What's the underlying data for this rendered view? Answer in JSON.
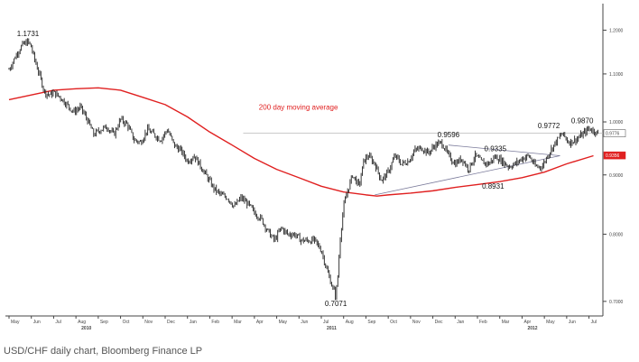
{
  "caption": "USD/CHF daily chart, Bloomberg Finance LP",
  "colors": {
    "price": "#222222",
    "moving_average": "#e02020",
    "trendline": "#7a7a9a",
    "reference_line": "#b8b8b8",
    "axis": "#444444",
    "tick_text": "#444444",
    "label_text": "#111111",
    "ma_label": "#e02020",
    "last_price_box": "#ffffff",
    "ma_box": "#e02020"
  },
  "chart_data": {
    "type": "line",
    "title": "",
    "xlabel": "",
    "ylabel": "",
    "y_scale": "log",
    "ylim": [
      0.68,
      1.265
    ],
    "grid": false,
    "y_ticks": [
      {
        "value": 0.7,
        "label": "0.7000"
      },
      {
        "value": 0.8,
        "label": "0.8000"
      },
      {
        "value": 0.9,
        "label": "0.9000"
      },
      {
        "value": 1.0,
        "label": "1.0000"
      },
      {
        "value": 1.1,
        "label": "1.1000"
      },
      {
        "value": 1.2,
        "label": "1.2000"
      }
    ],
    "x_ticks": [
      "May",
      "Jun",
      "Jul",
      "Aug",
      "Sep",
      "Oct",
      "Nov",
      "Dec",
      "Jan",
      "Feb",
      "Mar",
      "Apr",
      "May",
      "Jun",
      "Jul",
      "Aug",
      "Sep",
      "Oct",
      "Nov",
      "Dec",
      "Jan",
      "Feb",
      "Mar",
      "Apr",
      "May",
      "Jun",
      "Jul"
    ],
    "year_labels": [
      {
        "label": "2010",
        "month_index": 3
      },
      {
        "label": "2011",
        "month_index": 14
      },
      {
        "label": "2012",
        "month_index": 23
      }
    ],
    "series": [
      {
        "kind": "price",
        "x": [
          0,
          0.2,
          0.4,
          0.6,
          0.85,
          1.0,
          1.1,
          1.35,
          1.6,
          1.85,
          2.0,
          2.3,
          2.6,
          2.9,
          3.2,
          3.5,
          3.8,
          4.1,
          4.4,
          4.7,
          5.0,
          5.3,
          5.6,
          5.9,
          6.2,
          6.5,
          6.8,
          7.1,
          7.4,
          7.7,
          8.0,
          8.3,
          8.6,
          8.9,
          9.2,
          9.5,
          9.8,
          10.1,
          10.4,
          10.7,
          11.0,
          11.3,
          11.6,
          11.9,
          12.2,
          12.5,
          12.8,
          13.1,
          13.4,
          13.7,
          14.0,
          14.25,
          14.5,
          14.65,
          14.75,
          14.85,
          15.0,
          15.2,
          15.4,
          15.55,
          15.7,
          15.9,
          16.1,
          16.4,
          16.7,
          17.0,
          17.3,
          17.6,
          17.9,
          18.2,
          18.5,
          18.8,
          19.1,
          19.4,
          19.7,
          20.0,
          20.3,
          20.6,
          20.9,
          21.2,
          21.5,
          21.8,
          22.1,
          22.4,
          22.7,
          23.0,
          23.3,
          23.6,
          23.9,
          24.2,
          24.5,
          24.8,
          25.1,
          25.4,
          25.7,
          26.0,
          26.2,
          26.4
        ],
        "values": [
          1.11,
          1.13,
          1.15,
          1.165,
          1.1731,
          1.16,
          1.14,
          1.1,
          1.06,
          1.055,
          1.06,
          1.05,
          1.035,
          1.02,
          1.03,
          1.005,
          0.975,
          0.985,
          0.99,
          0.975,
          1.005,
          0.995,
          0.965,
          0.96,
          0.985,
          0.975,
          0.965,
          0.985,
          0.955,
          0.945,
          0.925,
          0.935,
          0.915,
          0.895,
          0.875,
          0.865,
          0.86,
          0.845,
          0.86,
          0.85,
          0.835,
          0.825,
          0.805,
          0.79,
          0.81,
          0.8,
          0.8,
          0.79,
          0.79,
          0.79,
          0.775,
          0.745,
          0.72,
          0.7071,
          0.74,
          0.795,
          0.845,
          0.875,
          0.9,
          0.89,
          0.88,
          0.925,
          0.935,
          0.92,
          0.89,
          0.905,
          0.935,
          0.92,
          0.925,
          0.945,
          0.95,
          0.94,
          0.955,
          0.9596,
          0.935,
          0.92,
          0.93,
          0.91,
          0.935,
          0.923,
          0.92,
          0.9335,
          0.925,
          0.915,
          0.92,
          0.93,
          0.935,
          0.915,
          0.915,
          0.94,
          0.96,
          0.9772,
          0.96,
          0.965,
          0.975,
          0.987,
          0.983,
          0.9776
        ]
      },
      {
        "kind": "moving_average",
        "name": "200 day moving average",
        "x": [
          0,
          1,
          2,
          3,
          4,
          5,
          6,
          7,
          8,
          9,
          10,
          11,
          12,
          13,
          14,
          15,
          16,
          16.5,
          17,
          18,
          19,
          20,
          21,
          22,
          23,
          24,
          25,
          26.2
        ],
        "values": [
          1.045,
          1.055,
          1.065,
          1.068,
          1.07,
          1.065,
          1.05,
          1.035,
          1.01,
          0.98,
          0.955,
          0.93,
          0.91,
          0.895,
          0.88,
          0.87,
          0.865,
          0.863,
          0.865,
          0.868,
          0.872,
          0.878,
          0.883,
          0.888,
          0.895,
          0.905,
          0.92,
          0.935
        ]
      }
    ],
    "trendlines": [
      {
        "x": [
          16.4,
          24.7
        ],
        "values": [
          0.865,
          0.935
        ]
      },
      {
        "x": [
          19.7,
          24.7
        ],
        "values": [
          0.955,
          0.935
        ]
      }
    ],
    "reference_line": {
      "value": 0.9776,
      "x_start": 10.5
    },
    "annotations": [
      {
        "text": "1.1731",
        "x": 0.85,
        "value": 1.1731,
        "placement": "above"
      },
      {
        "text": "0.7071",
        "x": 14.65,
        "value": 0.7071,
        "placement": "below"
      },
      {
        "text": "0.9596",
        "x": 19.7,
        "value": 0.9596,
        "placement": "above"
      },
      {
        "text": "0.9335",
        "x": 21.8,
        "value": 0.9335,
        "placement": "above"
      },
      {
        "text": "0.8931",
        "x": 21.7,
        "value": 0.8931,
        "placement": "below"
      },
      {
        "text": "0.9772",
        "x": 24.2,
        "value": 0.9772,
        "placement": "above"
      },
      {
        "text": "0.9870",
        "x": 25.7,
        "value": 0.987,
        "placement": "above"
      },
      {
        "text": "200 day moving average",
        "x": 11.2,
        "value": 1.025,
        "placement": "right",
        "style": "ma"
      }
    ],
    "axis_boxes": [
      {
        "text": "0.9776",
        "value": 0.9776,
        "style": "price"
      },
      {
        "text": "0.9356",
        "value": 0.9356,
        "style": "ma"
      }
    ]
  }
}
